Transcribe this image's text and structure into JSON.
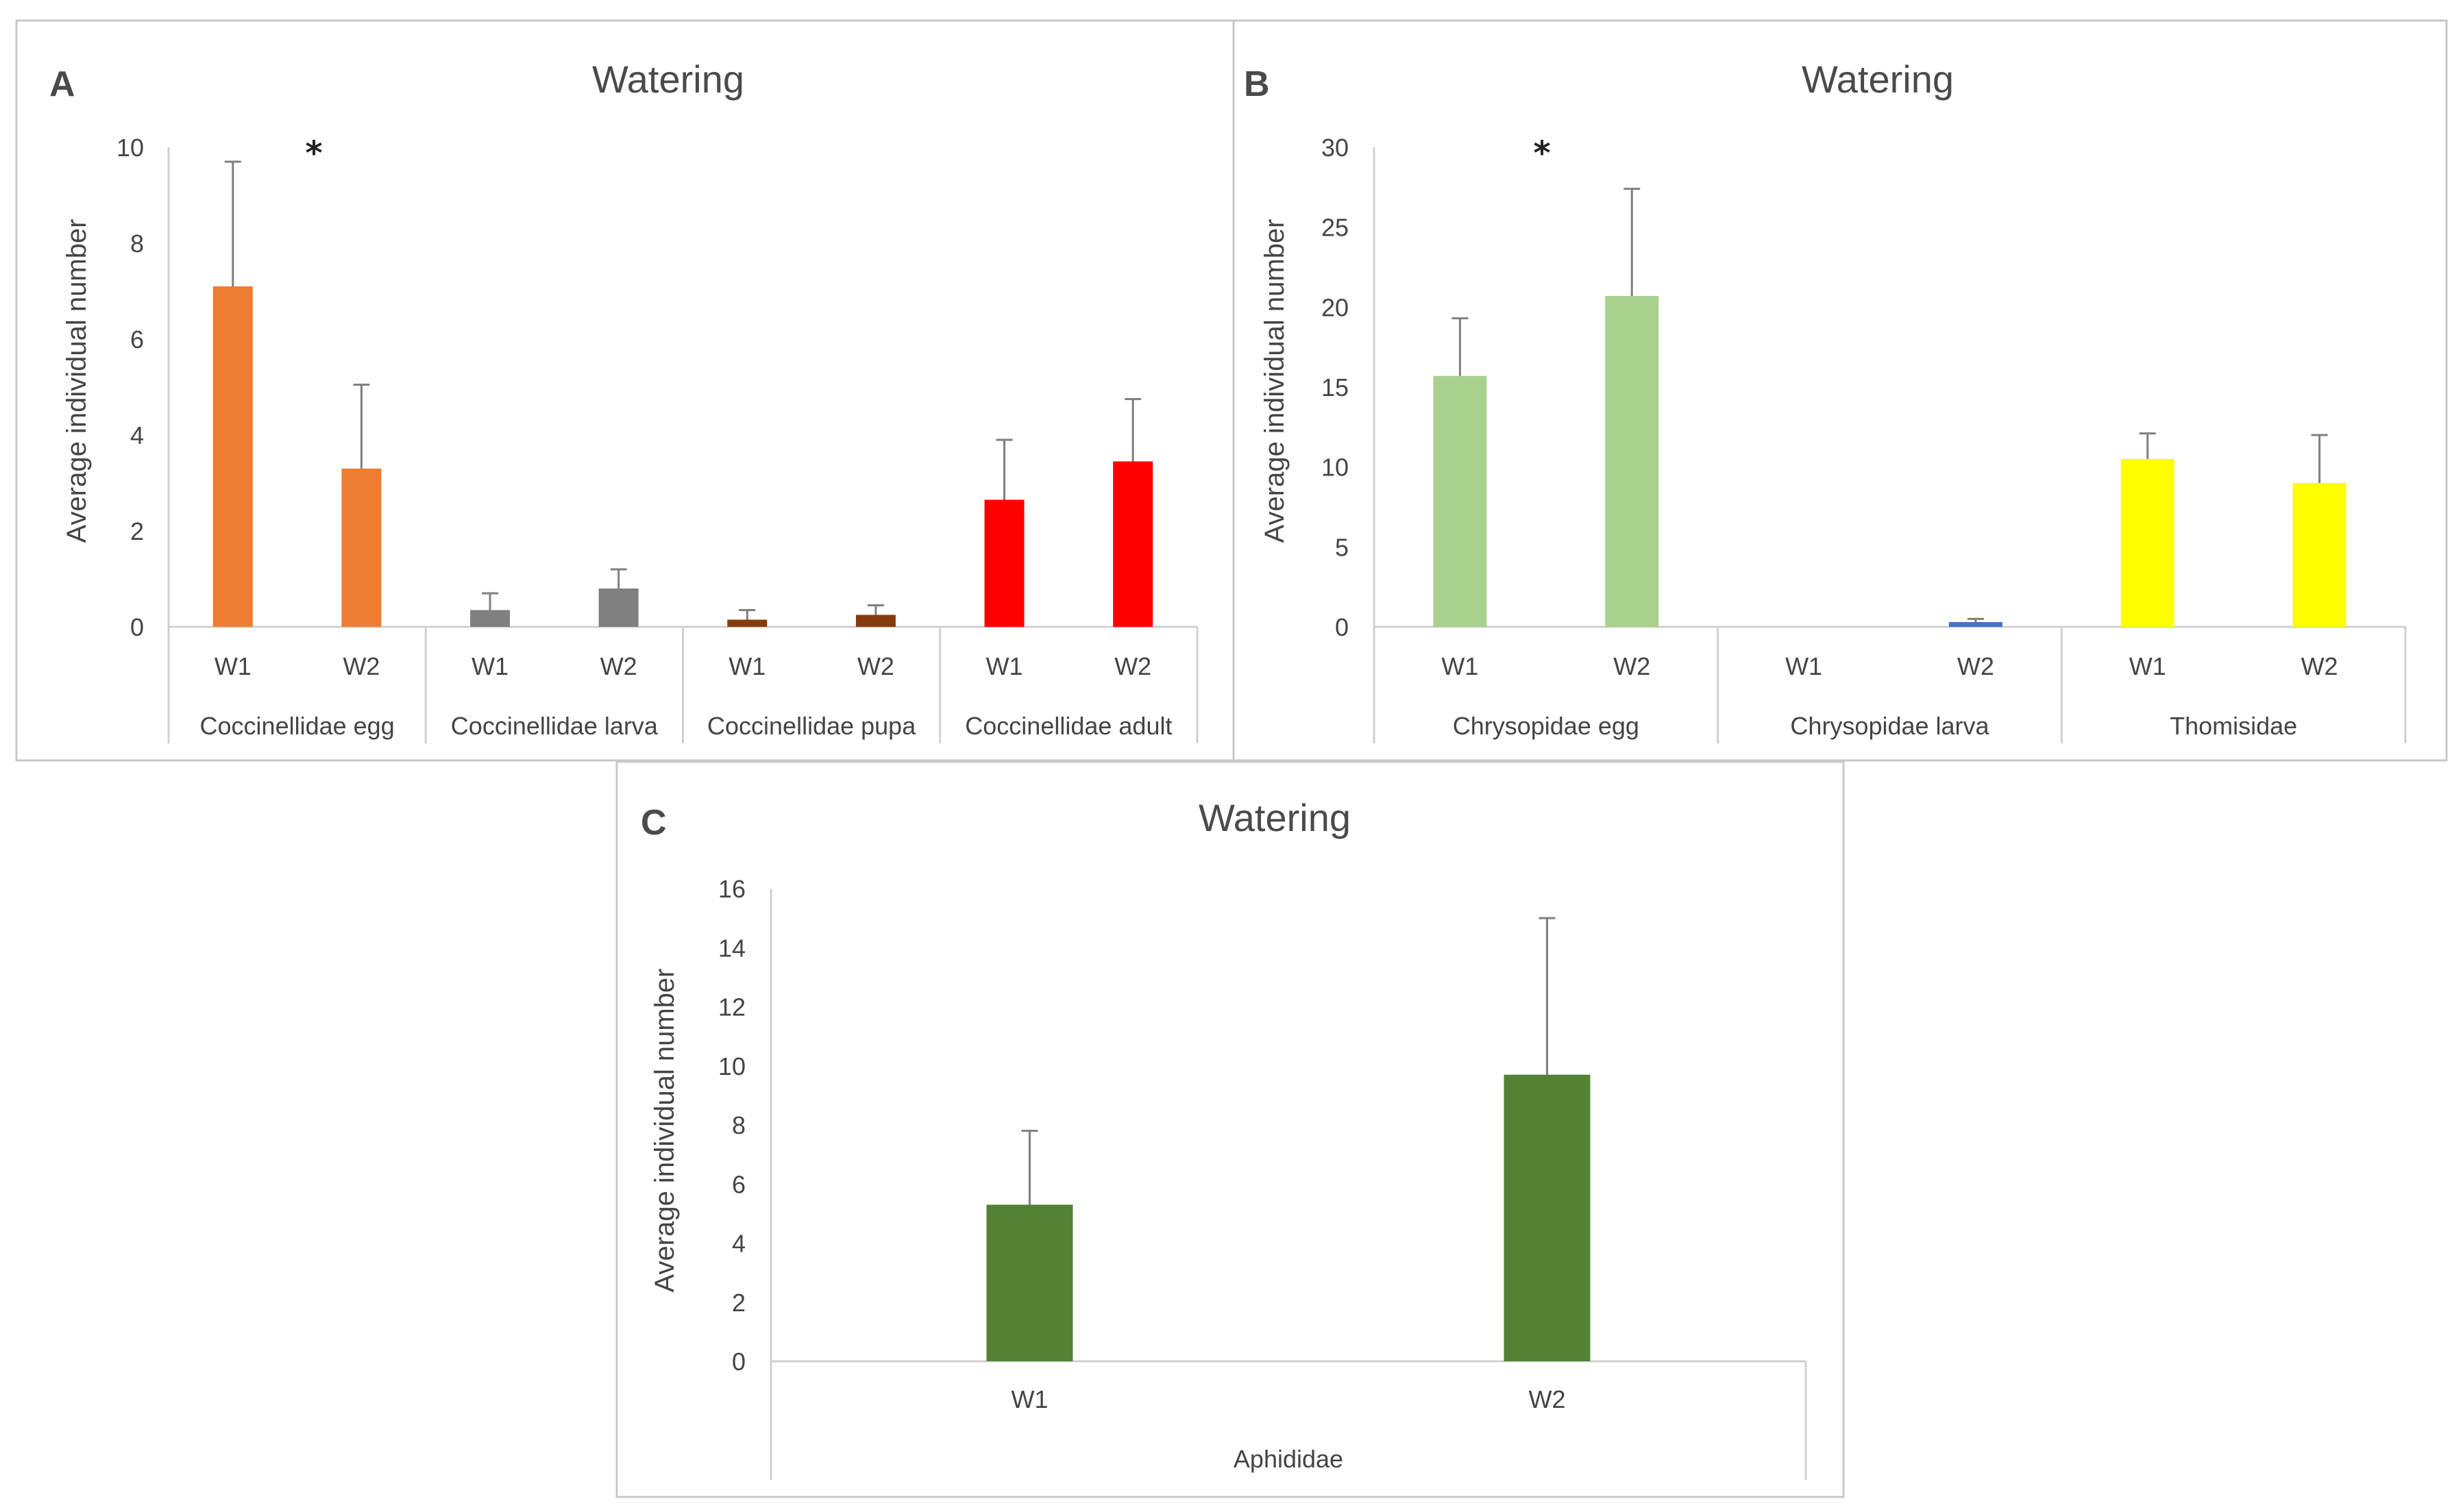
{
  "chart_data": [
    {
      "panel": "A",
      "type": "bar",
      "title": "Watering",
      "ylabel": "Average individual number",
      "ylim": [
        0,
        10
      ],
      "yticks": [
        "0",
        "2",
        "4",
        "6",
        "8",
        "10"
      ],
      "significance": "*",
      "groups": [
        {
          "name": "Coccinellidae egg",
          "color": "#ED7D31",
          "bars": [
            {
              "label": "W1",
              "value": 7.1,
              "error": 2.6
            },
            {
              "label": "W2",
              "value": 3.3,
              "error": 1.75
            }
          ]
        },
        {
          "name": "Coccinellidae larva",
          "color": "#808080",
          "bars": [
            {
              "label": "W1",
              "value": 0.35,
              "error": 0.35
            },
            {
              "label": "W2",
              "value": 0.8,
              "error": 0.4
            }
          ]
        },
        {
          "name": "Coccinellidae pupa",
          "color": "#843C0C",
          "bars": [
            {
              "label": "W1",
              "value": 0.15,
              "error": 0.2
            },
            {
              "label": "W2",
              "value": 0.25,
              "error": 0.2
            }
          ]
        },
        {
          "name": "Coccinellidae adult",
          "color": "#FF0000",
          "bars": [
            {
              "label": "W1",
              "value": 2.65,
              "error": 1.25
            },
            {
              "label": "W2",
              "value": 3.45,
              "error": 1.3
            }
          ]
        }
      ]
    },
    {
      "panel": "B",
      "type": "bar",
      "title": "Watering",
      "ylabel": "Average individual number",
      "ylim": [
        0,
        30
      ],
      "yticks": [
        "0",
        "5",
        "10",
        "15",
        "20",
        "25",
        "30"
      ],
      "significance": "*",
      "groups": [
        {
          "name": "Chrysopidae egg",
          "color": "#A9D18E",
          "bars": [
            {
              "label": "W1",
              "value": 15.7,
              "error": 3.6
            },
            {
              "label": "W2",
              "value": 20.7,
              "error": 6.7
            }
          ]
        },
        {
          "name": "Chrysopidae larva",
          "color": "#4472C4",
          "bars": [
            {
              "label": "W1",
              "value": 0,
              "error": 0
            },
            {
              "label": "W2",
              "value": 0.3,
              "error": 0.2
            }
          ]
        },
        {
          "name": "Thomisidae",
          "color": "#FFFF00",
          "bars": [
            {
              "label": "W1",
              "value": 10.5,
              "error": 1.6
            },
            {
              "label": "W2",
              "value": 9.0,
              "error": 3.0
            }
          ]
        }
      ]
    },
    {
      "panel": "C",
      "type": "bar",
      "title": "Watering",
      "ylabel": "Average individual number",
      "ylim": [
        0,
        16
      ],
      "yticks": [
        "0",
        "2",
        "4",
        "6",
        "8",
        "10",
        "12",
        "14",
        "16"
      ],
      "groups": [
        {
          "name": "Aphididae",
          "color": "#548235",
          "bars": [
            {
              "label": "W1",
              "value": 5.3,
              "error": 2.5
            },
            {
              "label": "W2",
              "value": 9.7,
              "error": 5.3
            }
          ]
        }
      ]
    }
  ]
}
